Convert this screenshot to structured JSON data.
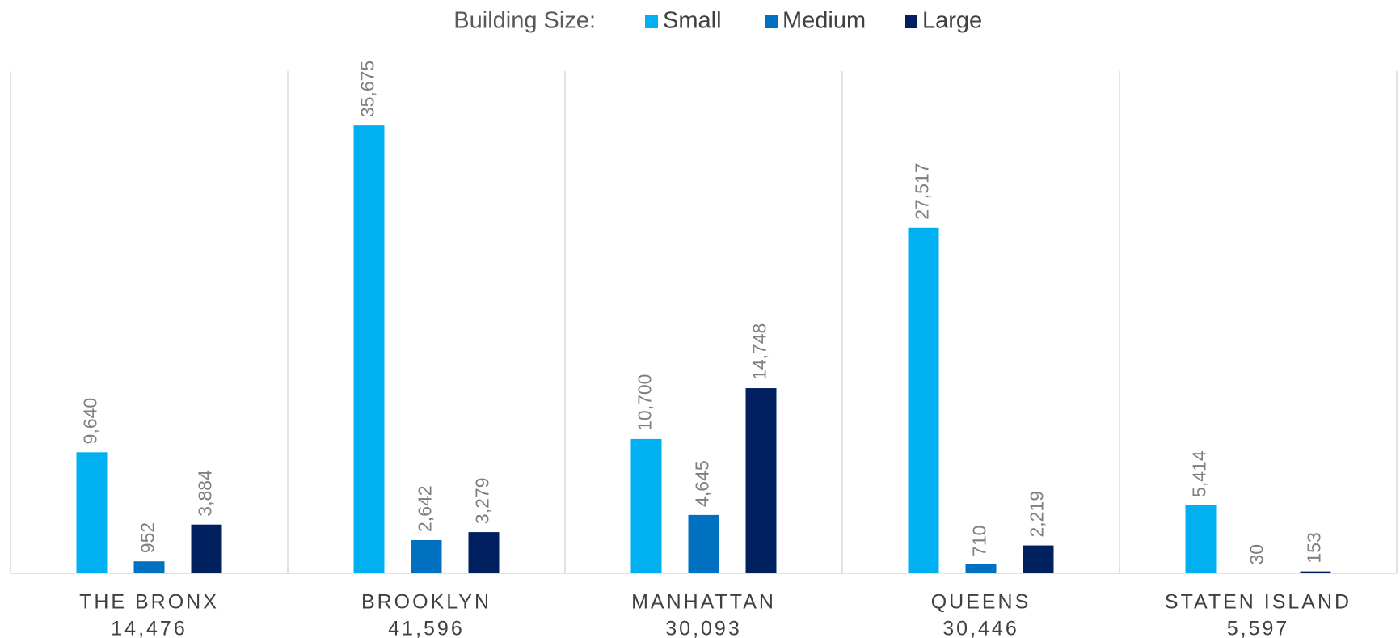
{
  "chart_data": {
    "type": "bar",
    "legend_title": "Building Size:",
    "categories": [
      "THE BRONX",
      "BROOKLYN",
      "MANHATTAN",
      "QUEENS",
      "STATEN ISLAND"
    ],
    "totals": [
      14476,
      41596,
      30093,
      30446,
      5597
    ],
    "totals_labels": [
      "14,476",
      "41,596",
      "30,093",
      "30,446",
      "5,597"
    ],
    "series": [
      {
        "name": "Small",
        "color": "#00b0f0",
        "values": [
          9640,
          35675,
          10700,
          27517,
          5414
        ],
        "value_labels": [
          "9,640",
          "35,675",
          "10,700",
          "27,517",
          "5,414"
        ]
      },
      {
        "name": "Medium",
        "color": "#0070c0",
        "values": [
          952,
          2642,
          4645,
          710,
          30
        ],
        "value_labels": [
          "952",
          "2,642",
          "4,645",
          "710",
          "30"
        ]
      },
      {
        "name": "Large",
        "color": "#002060",
        "values": [
          3884,
          3279,
          14748,
          2219,
          153
        ],
        "value_labels": [
          "3,884",
          "3,279",
          "14,748",
          "2,219",
          "153"
        ]
      }
    ],
    "ylim": [
      0,
      40000
    ],
    "legend": "top"
  }
}
